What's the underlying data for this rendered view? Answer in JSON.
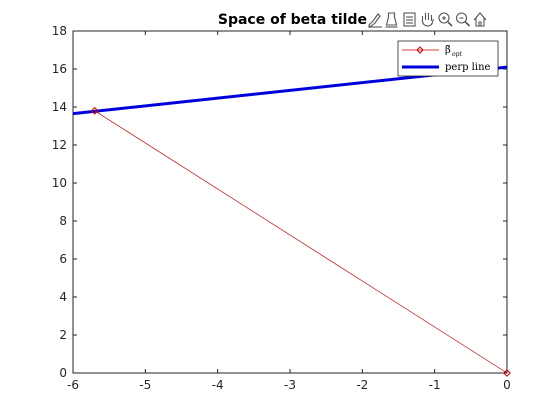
{
  "chart_data": {
    "type": "line",
    "title": "Space of beta tilde",
    "xlabel": "",
    "ylabel": "",
    "xlim": [
      -6,
      0
    ],
    "ylim": [
      0,
      18
    ],
    "xticks": [
      -6,
      -5,
      -4,
      -3,
      -2,
      -1,
      0
    ],
    "yticks": [
      0,
      2,
      4,
      6,
      8,
      10,
      12,
      14,
      16,
      18
    ],
    "grid": false,
    "legend_location": "top-right",
    "series": [
      {
        "name": "β̃opt",
        "legend_main": "β̃",
        "legend_sub": "opt",
        "color": "#cc0000",
        "marker": "diamond",
        "x": [
          -5.7,
          0
        ],
        "y": [
          13.8,
          0
        ]
      },
      {
        "name": "perp line",
        "color": "#0000dd",
        "marker": "none",
        "x": [
          -6,
          0
        ],
        "y": [
          13.65,
          16.1
        ]
      }
    ]
  },
  "toolbar": {
    "icons": [
      "brush-icon",
      "data-tip-icon",
      "legend-toggle-icon",
      "pan-hand-icon",
      "zoom-in-icon",
      "zoom-out-icon",
      "home-icon"
    ]
  }
}
